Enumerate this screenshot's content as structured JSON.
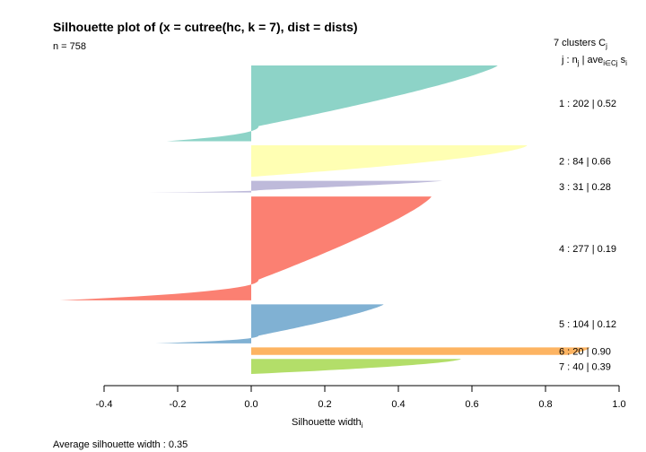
{
  "chart_data": {
    "type": "bar",
    "orientation": "horizontal",
    "title": "Silhouette plot of (x = cutree(hc, k = 7), dist = dists)",
    "subtitle": "n = 758",
    "xlabel": "Silhouette width",
    "xlabel_subscript": "i",
    "footer": "Average silhouette width :  0.35",
    "legend_header": {
      "prefix": "7  clusters  C",
      "prefix_sub": "j",
      "line2": "j :  n",
      "line2_sub": "j",
      "line2_mid": " | ave",
      "line2_mid_sub": "i∈Cj",
      "line2_end": "  s",
      "line2_end_sub": "i"
    },
    "xlim": [
      -0.4,
      1.0
    ],
    "xticks": [
      -0.4,
      -0.2,
      0.0,
      0.2,
      0.4,
      0.6,
      0.8,
      1.0
    ],
    "xtick_labels": [
      "-0.4",
      "-0.2",
      "0.0",
      "0.2",
      "0.4",
      "0.6",
      "0.8",
      "1.0"
    ],
    "n": 758,
    "avg_width": 0.35,
    "clusters": [
      {
        "id": 1,
        "n": 202,
        "avg": 0.52,
        "max": 0.67,
        "min": -0.23,
        "color": "#8DD3C7",
        "label": "1 :   202  |  0.52"
      },
      {
        "id": 2,
        "n": 84,
        "avg": 0.66,
        "max": 0.75,
        "min": 0.0,
        "color": "#FFFFB3",
        "label": "2 :   84  |  0.66"
      },
      {
        "id": 3,
        "n": 31,
        "avg": 0.28,
        "max": 0.52,
        "min": -0.28,
        "color": "#BEBADA",
        "label": "3 :   31  |  0.28"
      },
      {
        "id": 4,
        "n": 277,
        "avg": 0.19,
        "max": 0.49,
        "min": -0.52,
        "color": "#FB8072",
        "label": "4 :   277  |  0.19"
      },
      {
        "id": 5,
        "n": 104,
        "avg": 0.12,
        "max": 0.36,
        "min": -0.26,
        "color": "#80B1D3",
        "label": "5 :   104  |  0.12"
      },
      {
        "id": 6,
        "n": 20,
        "avg": 0.9,
        "max": 0.92,
        "min": 0.86,
        "color": "#FDB462",
        "label": "6 :   20  |  0.90"
      },
      {
        "id": 7,
        "n": 40,
        "avg": 0.39,
        "max": 0.57,
        "min": 0.0,
        "color": "#B3DE69",
        "label": "7 :   40  |  0.39"
      }
    ]
  }
}
